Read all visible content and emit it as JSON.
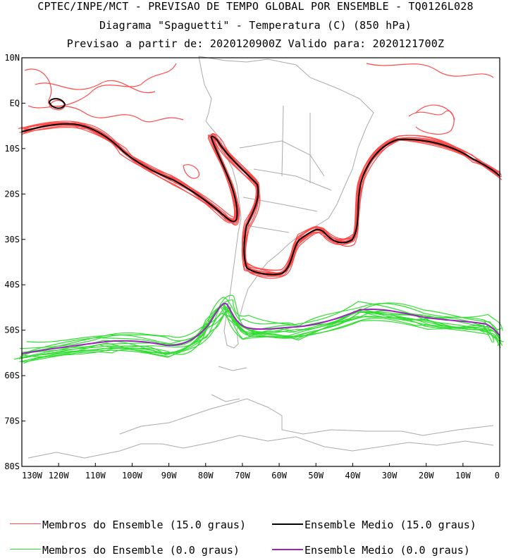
{
  "header": {
    "line1": "CPTEC/INPE/MCT - PREVISAO DE TEMPO GLOBAL POR ENSEMBLE - TQ0126L028",
    "line2": "Diagrama \"Spaguetti\" - Temperatura (C) (850 hPa)",
    "line3": "Previsao a partir de: 2020120900Z  Valido para: 2020121700Z"
  },
  "map": {
    "lat_labels": [
      "10N",
      "EQ",
      "10S",
      "20S",
      "30S",
      "40S",
      "50S",
      "60S",
      "70S",
      "80S"
    ],
    "lon_labels": [
      "130W",
      "120W",
      "110W",
      "100W",
      "90W",
      "80W",
      "70W",
      "60W",
      "50W",
      "40W",
      "30W",
      "20W",
      "10W",
      "0"
    ]
  },
  "legend": {
    "red_members": "Membros do Ensemble (15.0 graus)",
    "black_mean": "Ensemble Medio (15.0 graus)",
    "green_members": "Membros do Ensemble (0.0 graus)",
    "purple_mean": "Ensemble Medio (0.0 graus)"
  },
  "colors": {
    "red_members": "#ff4a4a",
    "black_mean": "#000000",
    "green_members": "#33dd33",
    "purple_mean": "#a020c0",
    "coastline": "#aaaaaa"
  }
}
